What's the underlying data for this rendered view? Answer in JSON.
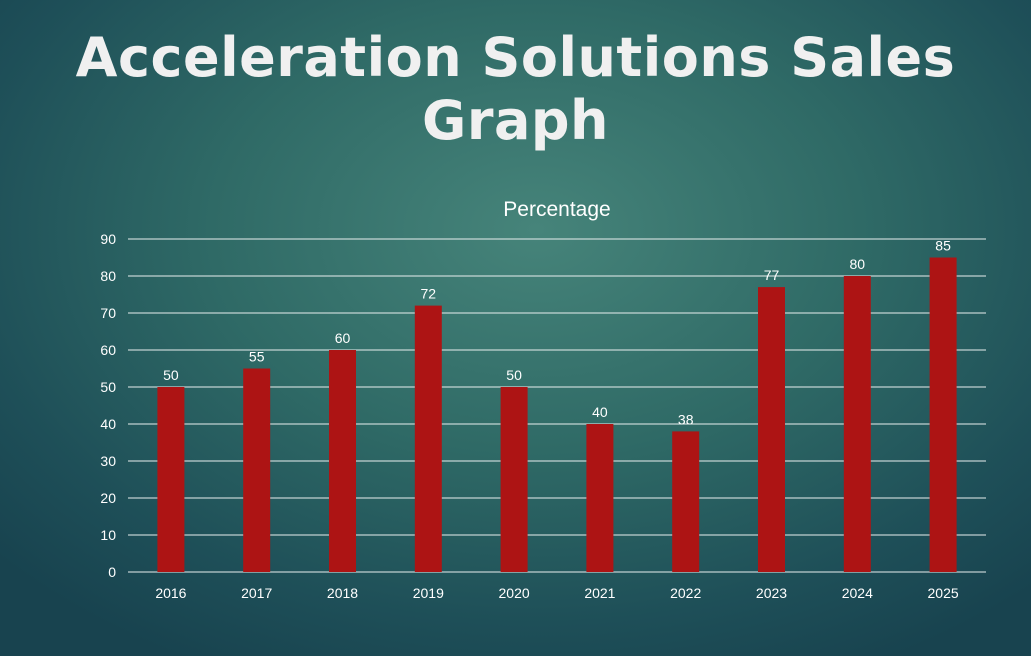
{
  "slide_title": "Acceleration Solutions Sales Graph",
  "chart_data": {
    "type": "bar",
    "title": "Percentage",
    "categories": [
      "2016",
      "2017",
      "2018",
      "2019",
      "2020",
      "2021",
      "2022",
      "2023",
      "2024",
      "2025"
    ],
    "values": [
      50,
      55,
      60,
      72,
      50,
      40,
      38,
      77,
      80,
      85
    ],
    "xlabel": "",
    "ylabel": "",
    "ylim": [
      0,
      90
    ],
    "yticks": [
      0,
      10,
      20,
      30,
      40,
      50,
      60,
      70,
      80,
      90
    ],
    "grid": true,
    "legend": "none",
    "bar_color": "#ad1414"
  }
}
